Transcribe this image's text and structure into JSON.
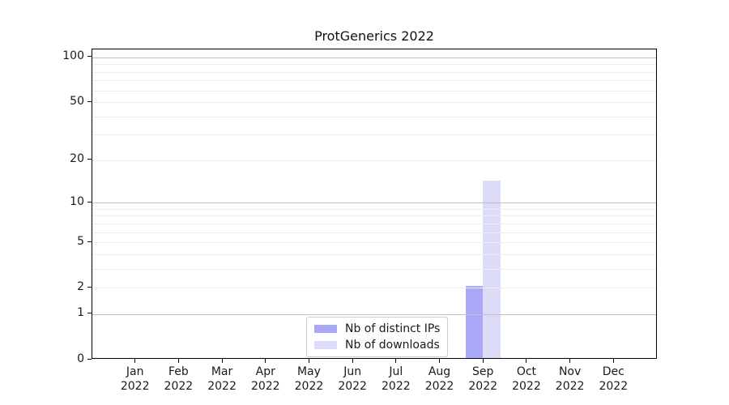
{
  "chart_data": {
    "type": "bar",
    "title": "ProtGenerics 2022",
    "categories": [
      {
        "month": "Jan",
        "year": "2022"
      },
      {
        "month": "Feb",
        "year": "2022"
      },
      {
        "month": "Mar",
        "year": "2022"
      },
      {
        "month": "Apr",
        "year": "2022"
      },
      {
        "month": "May",
        "year": "2022"
      },
      {
        "month": "Jun",
        "year": "2022"
      },
      {
        "month": "Jul",
        "year": "2022"
      },
      {
        "month": "Aug",
        "year": "2022"
      },
      {
        "month": "Sep",
        "year": "2022"
      },
      {
        "month": "Oct",
        "year": "2022"
      },
      {
        "month": "Nov",
        "year": "2022"
      },
      {
        "month": "Dec",
        "year": "2022"
      }
    ],
    "series": [
      {
        "name": "Nb of distinct IPs",
        "color": "#a9a9f7",
        "values": [
          0,
          0,
          0,
          0,
          0,
          0,
          0,
          0,
          2,
          0,
          0,
          0
        ]
      },
      {
        "name": "Nb of downloads",
        "color": "#dcdcf9",
        "values": [
          0,
          0,
          0,
          0,
          0,
          0,
          0,
          0,
          14,
          0,
          0,
          0
        ]
      }
    ],
    "y_axis": {
      "scale": "log1p",
      "ylim": [
        0,
        113
      ],
      "tick_values": [
        0,
        1,
        2,
        5,
        10,
        20,
        50,
        100
      ],
      "major_gridlines": [
        1,
        10,
        100
      ],
      "minor_gridlines": [
        2,
        3,
        4,
        5,
        6,
        7,
        8,
        9,
        20,
        30,
        40,
        50,
        60,
        70,
        80,
        90
      ]
    },
    "legend": {
      "position": "bottom-center-inside"
    },
    "colors": {
      "grid_major": "#c0c0c0",
      "grid_minor": "#ececec",
      "spine": "#000000",
      "text": "#1a1a1a",
      "background": "#ffffff"
    }
  }
}
